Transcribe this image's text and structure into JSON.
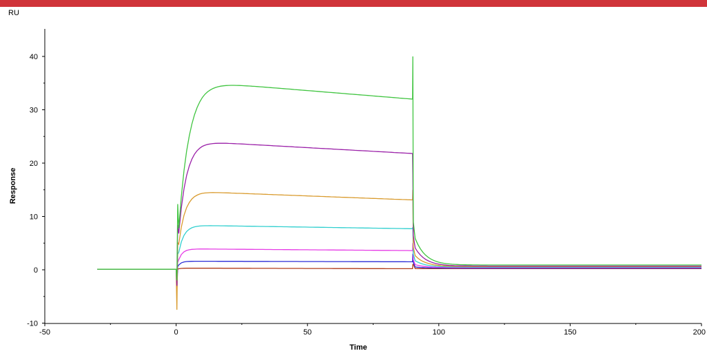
{
  "chart_data": {
    "type": "line",
    "unit_label": "RU",
    "xlabel": "Time",
    "ylabel": "Response",
    "xlim": [
      -50,
      200
    ],
    "ylim": [
      -10,
      45
    ],
    "x_ticks": [
      -50,
      0,
      50,
      100,
      150,
      200
    ],
    "x_tick_labels": [
      "-50",
      "0",
      "50",
      "100",
      "150",
      "200"
    ],
    "y_ticks": [
      -10,
      0,
      10,
      20,
      30,
      40
    ],
    "y_tick_labels": [
      "-10",
      "0",
      "10",
      "20",
      "30",
      "40"
    ],
    "grid": false,
    "injection_start": 0,
    "injection_end": 90,
    "series": [
      {
        "color": "#3fc43f",
        "plateau": 35.2,
        "end_level": 32.0,
        "ramp": 4,
        "spike": 40,
        "drop": -2,
        "tail": 0.9
      },
      {
        "color": "#9a1fa8",
        "plateau": 24.0,
        "end_level": 21.8,
        "ramp": 3,
        "spike": 18,
        "drop": -3,
        "tail": 0.7
      },
      {
        "color": "#d99a2c",
        "plateau": 14.6,
        "end_level": 13.1,
        "ramp": 2.5,
        "spike": 15,
        "drop": -7.5,
        "tail": 0.6
      },
      {
        "color": "#2fcfcf",
        "plateau": 8.3,
        "end_level": 7.7,
        "ramp": 2,
        "spike": 8,
        "drop": -4,
        "tail": 0.5
      },
      {
        "color": "#e63ae6",
        "plateau": 3.9,
        "end_level": 3.6,
        "ramp": 1.5,
        "spike": 5,
        "drop": -3,
        "tail": 0.4
      },
      {
        "color": "#2a2ad6",
        "plateau": 1.6,
        "end_level": 1.5,
        "ramp": 1.2,
        "spike": 3,
        "drop": -4,
        "tail": 0.3
      },
      {
        "color": "#b03a1a",
        "plateau": 0.3,
        "end_level": 0.2,
        "ramp": 1,
        "spike": 1,
        "drop": -1.5,
        "tail": 0.2
      }
    ]
  }
}
